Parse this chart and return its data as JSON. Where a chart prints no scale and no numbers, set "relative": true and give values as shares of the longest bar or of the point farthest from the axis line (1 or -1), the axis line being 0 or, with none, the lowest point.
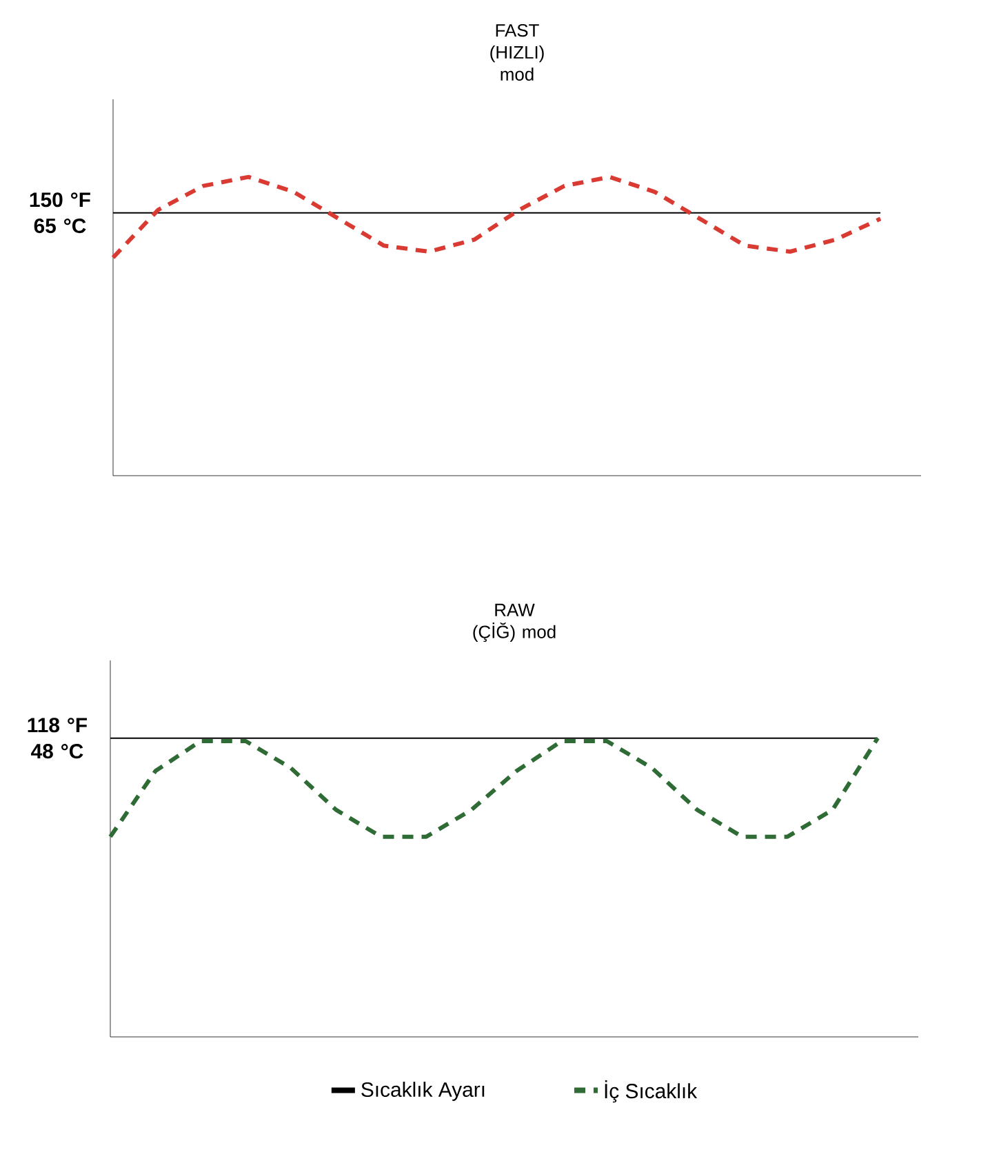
{
  "chart_data": [
    {
      "type": "line",
      "title": "FAST (HIZLI) mod",
      "relative": true,
      "categories": [
        null,
        null,
        null,
        null,
        null,
        null,
        null,
        null,
        null,
        null,
        null,
        null,
        null,
        null,
        null,
        null,
        null,
        null
      ],
      "series": [
        {
          "color": "#000000",
          "line_style": "solid",
          "values": [
            0.88,
            0.88,
            0.88,
            0.88,
            0.88,
            0.88,
            0.88,
            0.88,
            0.88,
            0.88,
            0.88,
            0.88,
            0.88,
            0.88,
            0.88,
            0.88,
            0.88,
            0.88
          ]
        },
        {
          "color": "#d93a32",
          "line_style": "dashed",
          "values": [
            0.73,
            0.89,
            0.97,
            1.0,
            0.95,
            0.86,
            0.77,
            0.75,
            0.79,
            0.89,
            0.97,
            1.0,
            0.95,
            0.86,
            0.77,
            0.75,
            0.79,
            0.86
          ]
        }
      ],
      "annotations": [
        "150 °F 65 °C"
      ]
    },
    {
      "type": "line",
      "title": "RAW (ÇİĞ) mod",
      "relative": true,
      "legend": "bottom",
      "categories": [
        null,
        null,
        null,
        null,
        null,
        null,
        null,
        null,
        null,
        null,
        null,
        null,
        null,
        null,
        null,
        null,
        null,
        null
      ],
      "series": [
        {
          "name": "Sıcaklık Ayarı",
          "color": "#000000",
          "line_style": "solid",
          "values": [
            1.0,
            1.0,
            1.0,
            1.0,
            1.0,
            1.0,
            1.0,
            1.0,
            1.0,
            1.0,
            1.0,
            1.0,
            1.0,
            1.0,
            1.0,
            1.0,
            1.0,
            1.0
          ]
        },
        {
          "name": "İç Sıcaklık",
          "color": "#2e6b35",
          "line_style": "dashed",
          "values": [
            0.67,
            0.89,
            0.99,
            0.99,
            0.9,
            0.76,
            0.67,
            0.67,
            0.76,
            0.89,
            0.99,
            0.99,
            0.9,
            0.76,
            0.67,
            0.67,
            0.76,
            1.0
          ]
        }
      ],
      "annotations": [
        "118 °F 48 °C"
      ]
    }
  ]
}
